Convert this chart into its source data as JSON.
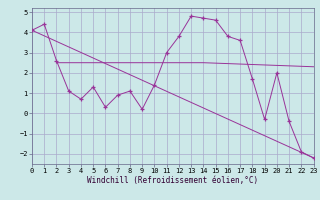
{
  "xlabel": "Windchill (Refroidissement éolien,°C)",
  "background_color": "#cce8e8",
  "grid_color": "#aaaacc",
  "line_color": "#993399",
  "xlim": [
    0,
    23
  ],
  "ylim": [
    -2.5,
    5.2
  ],
  "yticks": [
    -2,
    -1,
    0,
    1,
    2,
    3,
    4,
    5
  ],
  "xticks": [
    0,
    1,
    2,
    3,
    4,
    5,
    6,
    7,
    8,
    9,
    10,
    11,
    12,
    13,
    14,
    15,
    16,
    17,
    18,
    19,
    20,
    21,
    22,
    23
  ],
  "line1_x": [
    0,
    1,
    2,
    3,
    4,
    5,
    6,
    7,
    8,
    9,
    10,
    11,
    12,
    13,
    14,
    15,
    16,
    17,
    18,
    19,
    20,
    21,
    22,
    23
  ],
  "line1_y": [
    4.1,
    4.4,
    2.6,
    1.1,
    0.7,
    1.3,
    0.3,
    0.9,
    1.1,
    0.2,
    1.4,
    3.0,
    3.8,
    4.8,
    4.7,
    4.6,
    3.8,
    3.6,
    1.7,
    -0.3,
    2.0,
    -0.4,
    -1.9,
    -2.2
  ],
  "line2_x": [
    2,
    14,
    23
  ],
  "line2_y": [
    2.5,
    2.5,
    2.3
  ],
  "line3_x": [
    0,
    23
  ],
  "line3_y": [
    4.1,
    -2.2
  ],
  "tick_fontsize": 5.0,
  "xlabel_fontsize": 5.5
}
